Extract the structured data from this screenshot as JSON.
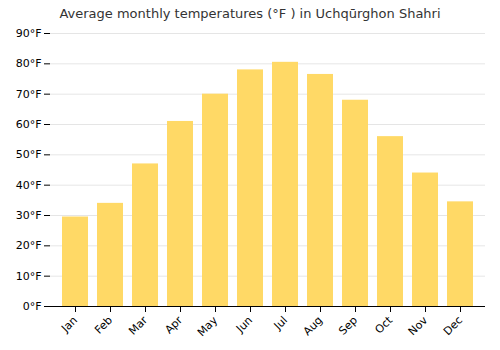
{
  "chart_data": {
    "type": "bar",
    "title": "Average monthly temperatures (°F ) in Uchqūrghon Shahri",
    "categories": [
      "Jan",
      "Feb",
      "Mar",
      "Apr",
      "May",
      "Jun",
      "Jul",
      "Aug",
      "Sep",
      "Oct",
      "Nov",
      "Dec"
    ],
    "values": [
      29.5,
      34,
      47,
      61,
      70,
      78,
      80.5,
      76.5,
      68,
      56,
      44,
      34.5
    ],
    "color": "#FFD966",
    "ylim": [
      0,
      90
    ],
    "yticks": [
      {
        "value": 0,
        "label": "0°F"
      },
      {
        "value": 10,
        "label": "10°F"
      },
      {
        "value": 20,
        "label": "20°F"
      },
      {
        "value": 30,
        "label": "30°F"
      },
      {
        "value": 40,
        "label": "40°F"
      },
      {
        "value": 50,
        "label": "50°F"
      },
      {
        "value": 60,
        "label": "60°F"
      },
      {
        "value": 70,
        "label": "70°F"
      },
      {
        "value": 80,
        "label": "80°F"
      },
      {
        "value": 90,
        "label": "90°F"
      }
    ],
    "grid": true
  }
}
